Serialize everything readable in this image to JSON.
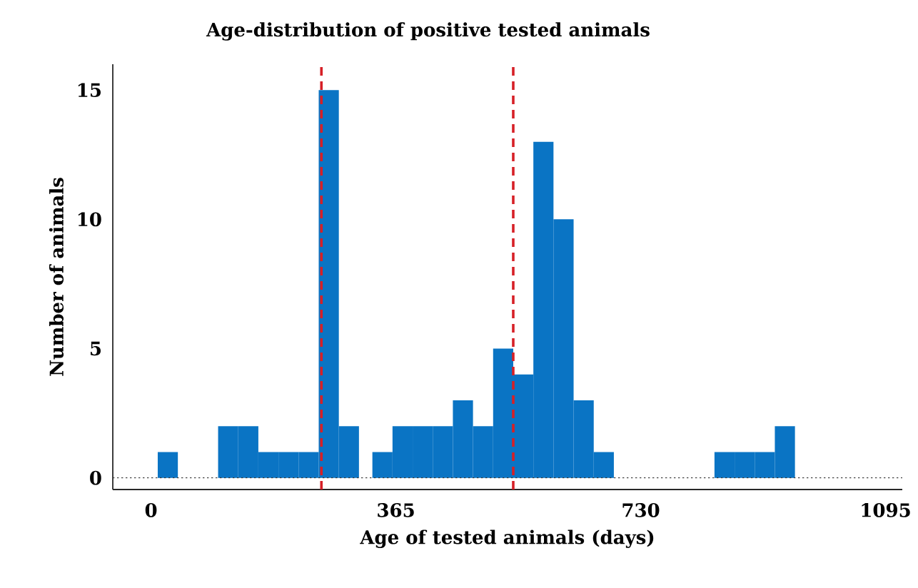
{
  "chart_data": {
    "type": "histogram",
    "title": "Age-distribution of positive tested animals",
    "xlabel": "Age of tested animals (days)",
    "ylabel": "Number of animals",
    "bins": [
      10,
      40,
      100,
      130,
      160,
      190,
      220,
      250,
      280,
      310,
      330,
      360,
      390,
      420,
      450,
      480,
      510,
      540,
      570,
      600,
      630,
      660,
      690,
      840,
      870,
      900,
      930,
      960
    ],
    "values": [
      1,
      0,
      2,
      2,
      1,
      1,
      1,
      15,
      2,
      0,
      1,
      2,
      2,
      2,
      3,
      2,
      5,
      4,
      13,
      10,
      3,
      1,
      0,
      1,
      1,
      1,
      2
    ],
    "color": "#0a74c4",
    "xlim": [
      -57,
      1120
    ],
    "xticks": [
      0,
      365,
      730,
      1095
    ],
    "ylim": [
      -0.45,
      16
    ],
    "yticks": [
      0,
      5,
      10,
      15
    ],
    "ref_lines": [
      {
        "axis": "x",
        "value": 254,
        "color": "#d62027",
        "line_style": "dashed"
      },
      {
        "axis": "x",
        "value": 540,
        "color": "#d62027",
        "line_style": "dashed"
      },
      {
        "axis": "y",
        "value": 0,
        "color": "#333333",
        "line_style": "dotted"
      }
    ],
    "grid": false
  }
}
